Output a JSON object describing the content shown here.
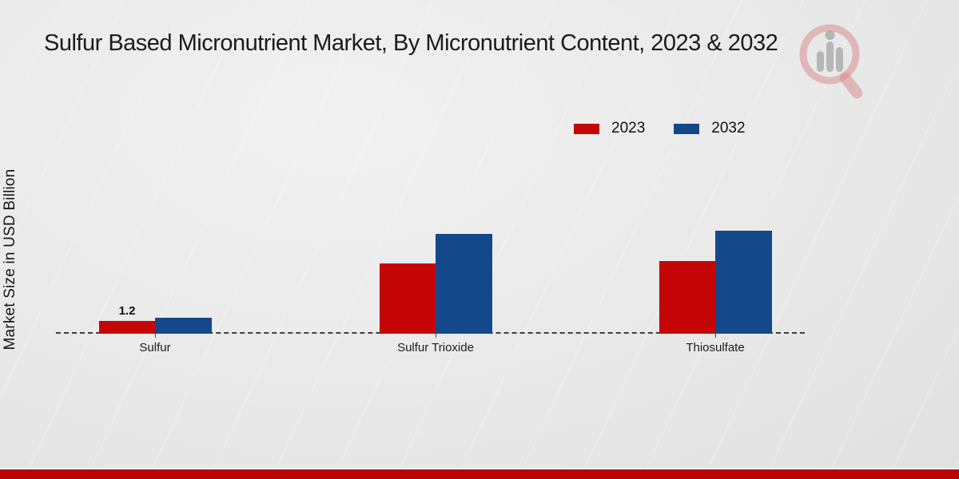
{
  "page": {
    "background_color": "#e9e9e9",
    "footer_bar_color": "#ba0302"
  },
  "watermark": {
    "icon": "magnifier-bar-chart-logo"
  },
  "chart_data": {
    "type": "bar",
    "title": "Sulfur Based Micronutrient Market, By Micronutrient Content, 2023 & 2032",
    "ylabel": "Market Size in USD Billion",
    "xlabel": "",
    "categories": [
      "Sulfur",
      "Sulfur Trioxide",
      "Thiosulfate"
    ],
    "series": [
      {
        "name": "2023",
        "color": "#c40606",
        "values": [
          1.2,
          6.6,
          6.8
        ]
      },
      {
        "name": "2032",
        "color": "#13498a",
        "values": [
          1.5,
          9.4,
          9.7
        ]
      }
    ],
    "value_labels": [
      {
        "series": "2023",
        "category": "Sulfur",
        "text": "1.2"
      }
    ],
    "legend_position": "top-right",
    "baseline_style": "dashed",
    "grid": false
  }
}
